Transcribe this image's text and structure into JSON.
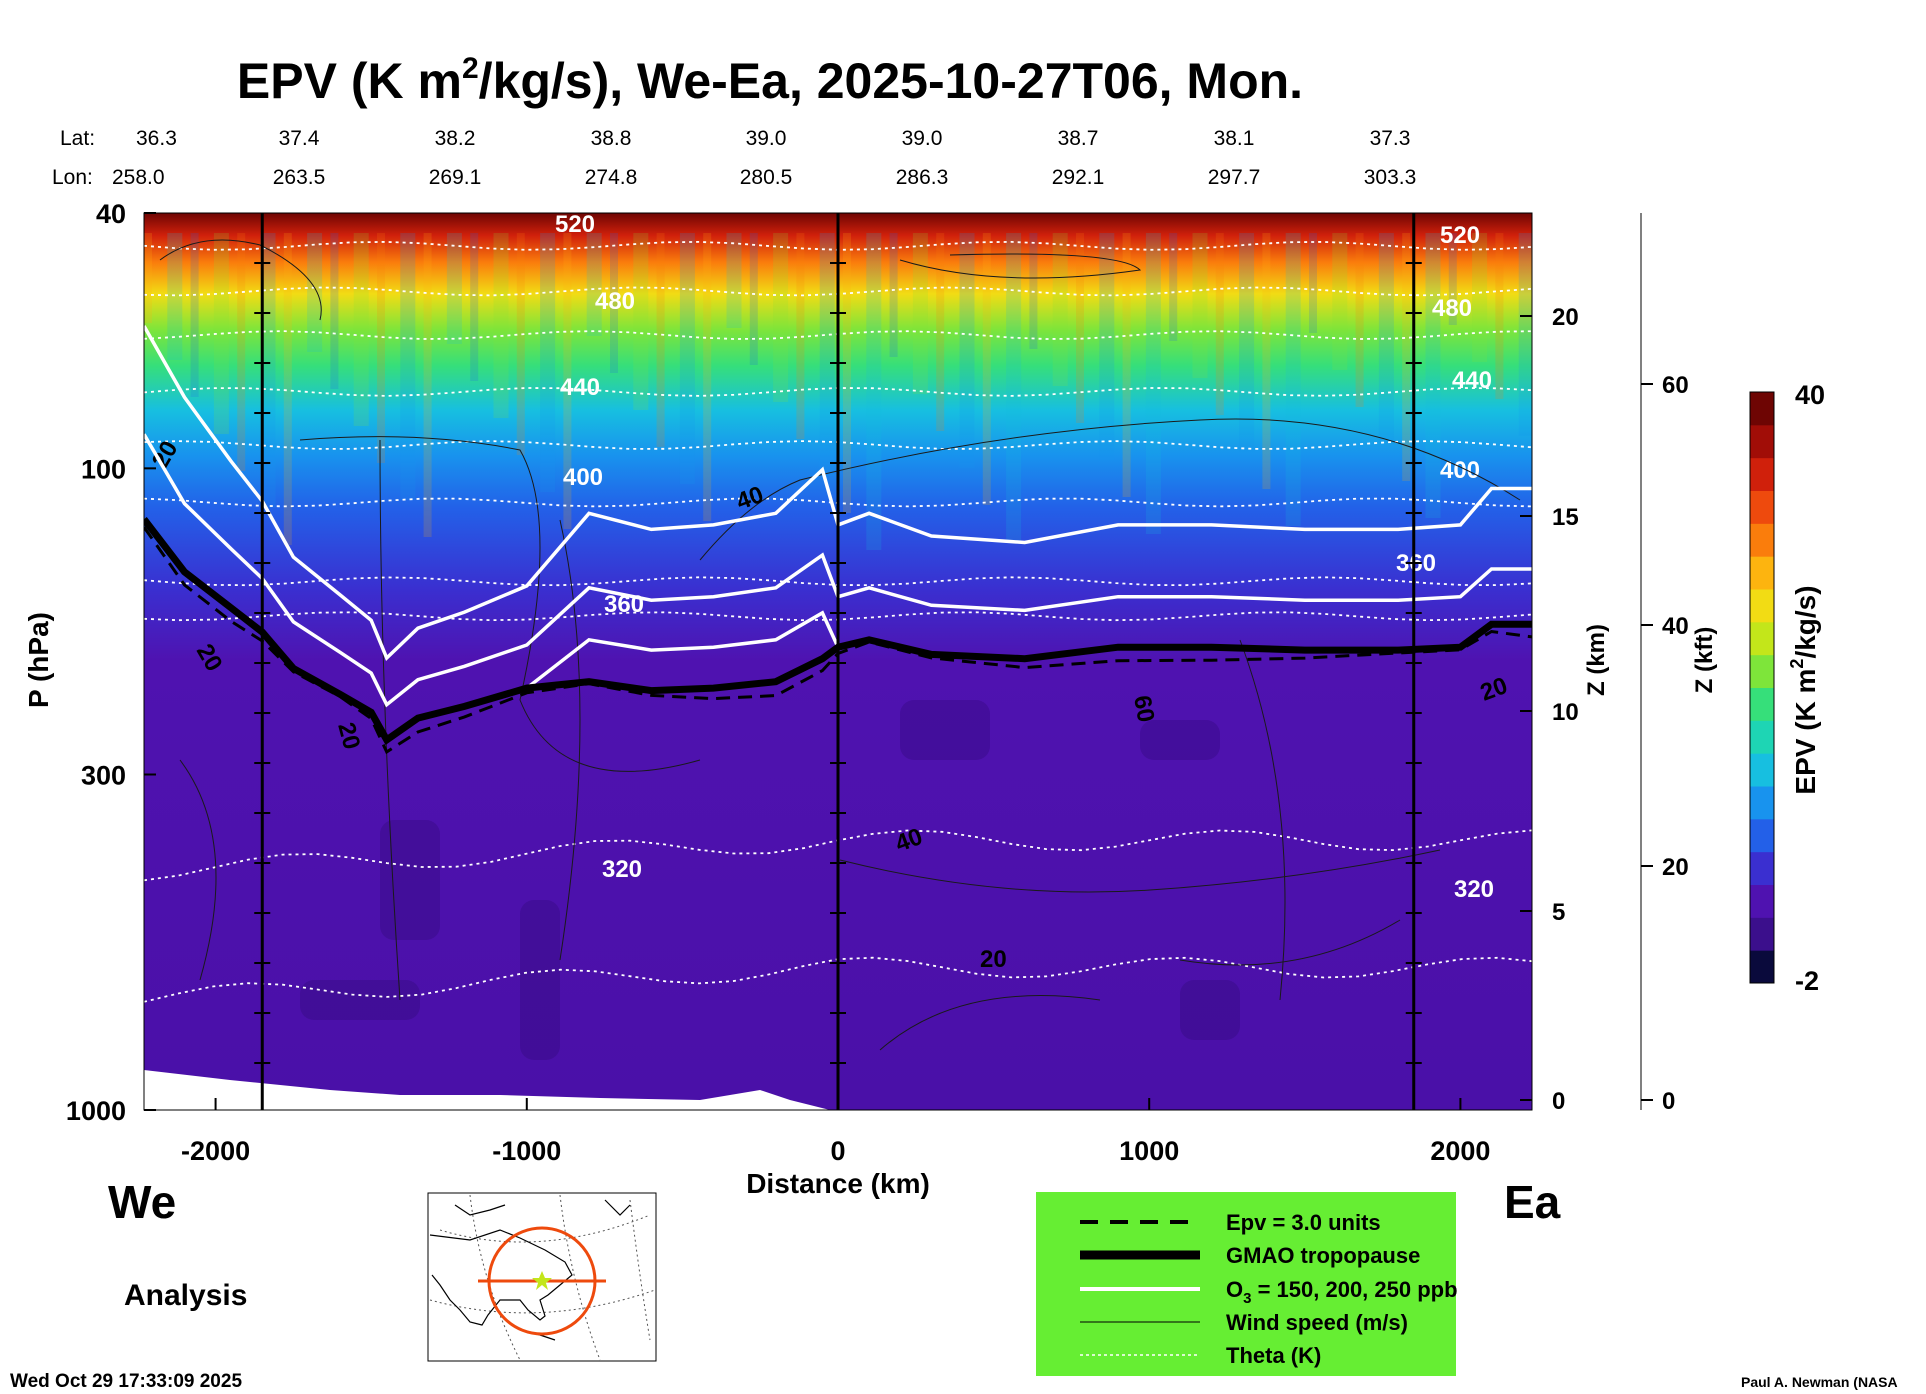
{
  "chart_data": {
    "type": "heatmap",
    "title_main": "EPV (K m",
    "title_sup": "2",
    "title_rest": "/kg/s), We-Ea, 2025-10-27T06, Mon.",
    "header": {
      "lat_label": "Lat:",
      "lon_label": "Lon:",
      "lat": [
        "36.3",
        "37.4",
        "38.2",
        "38.8",
        "39.0",
        "39.0",
        "38.7",
        "38.1",
        "37.3"
      ],
      "lon": [
        "258.0",
        "263.5",
        "269.1",
        "274.8",
        "280.5",
        "286.3",
        "292.1",
        "297.7",
        "303.3"
      ]
    },
    "xlabel": "Distance (km)",
    "x_ticks": [
      "-2000",
      "-1000",
      "0",
      "1000",
      "2000"
    ],
    "x_tick_values": [
      -2000,
      -1000,
      0,
      1000,
      2000
    ],
    "xlim": [
      -2230,
      2230
    ],
    "ylabel": "P (hPa)",
    "y_ticks": [
      "40",
      "100",
      "300",
      "1000"
    ],
    "y_tick_values": [
      40,
      100,
      300,
      1000
    ],
    "ylim": [
      1000,
      40
    ],
    "y_scale": "log",
    "z_km_label": "Z (km)",
    "z_km_ticks": [
      "0",
      "5",
      "10",
      "15",
      "20"
    ],
    "z_kft_label": "Z (kft)",
    "z_kft_ticks": [
      "0",
      "20",
      "40",
      "60"
    ],
    "colorbar": {
      "label": "EPV (K m",
      "label_sup": "2",
      "label_rest": "/kg/s)",
      "max_label": "40",
      "min_label": "-2",
      "colors": [
        "#0a0a3c",
        "#3b0f8c",
        "#4f12b0",
        "#3a2fd0",
        "#2360e8",
        "#1893ee",
        "#17bfe0",
        "#1ed5b4",
        "#36df7a",
        "#7ee53a",
        "#c3e61a",
        "#f2dc14",
        "#fdb40f",
        "#fa7d0c",
        "#ee4a0d",
        "#d0200b",
        "#a10d07",
        "#6e0503"
      ]
    },
    "theta_labels": [
      "520",
      "480",
      "440",
      "400",
      "360",
      "320"
    ],
    "theta_values_K": [
      520,
      480,
      440,
      400,
      360,
      320
    ],
    "theta_levels_hPa": [
      45,
      53,
      62,
      76,
      92,
      113,
      150,
      170,
      380,
      600
    ],
    "wind_labels": [
      "20",
      "40",
      "20",
      "20",
      "60",
      "20",
      "40",
      "20"
    ],
    "tropopause_hPa": {
      "x": [
        -2230,
        -2100,
        -1950,
        -1850,
        -1750,
        -1600,
        -1500,
        -1450,
        -1350,
        -1200,
        -1000,
        -800,
        -600,
        -400,
        -200,
        -50,
        0,
        100,
        300,
        600,
        900,
        1200,
        1500,
        1800,
        2000,
        2100,
        2230
      ],
      "p": [
        120,
        145,
        165,
        180,
        205,
        225,
        240,
        265,
        245,
        235,
        220,
        215,
        222,
        220,
        215,
        198,
        190,
        185,
        195,
        198,
        190,
        190,
        192,
        192,
        190,
        175,
        175
      ]
    },
    "minimap_note": "",
    "left_word": "We",
    "right_word": "Ea",
    "analysis_label": "Analysis",
    "timestamp": "Wed Oct 29 17:33:09 2025",
    "credit": "Paul A. Newman (NASA",
    "legend": {
      "items": [
        {
          "label": "Epv = 3.0 units",
          "style": "dashed-black"
        },
        {
          "label": "GMAO tropopause",
          "style": "thick-black"
        },
        {
          "label": "O",
          "sub": "3",
          "label_rest": " = 150, 200, 250 ppb",
          "style": "white"
        },
        {
          "label": "Wind speed (m/s)",
          "style": "thin-black"
        },
        {
          "label": "Theta (K)",
          "style": "dotted-white"
        }
      ],
      "background": "#66ee33"
    }
  }
}
